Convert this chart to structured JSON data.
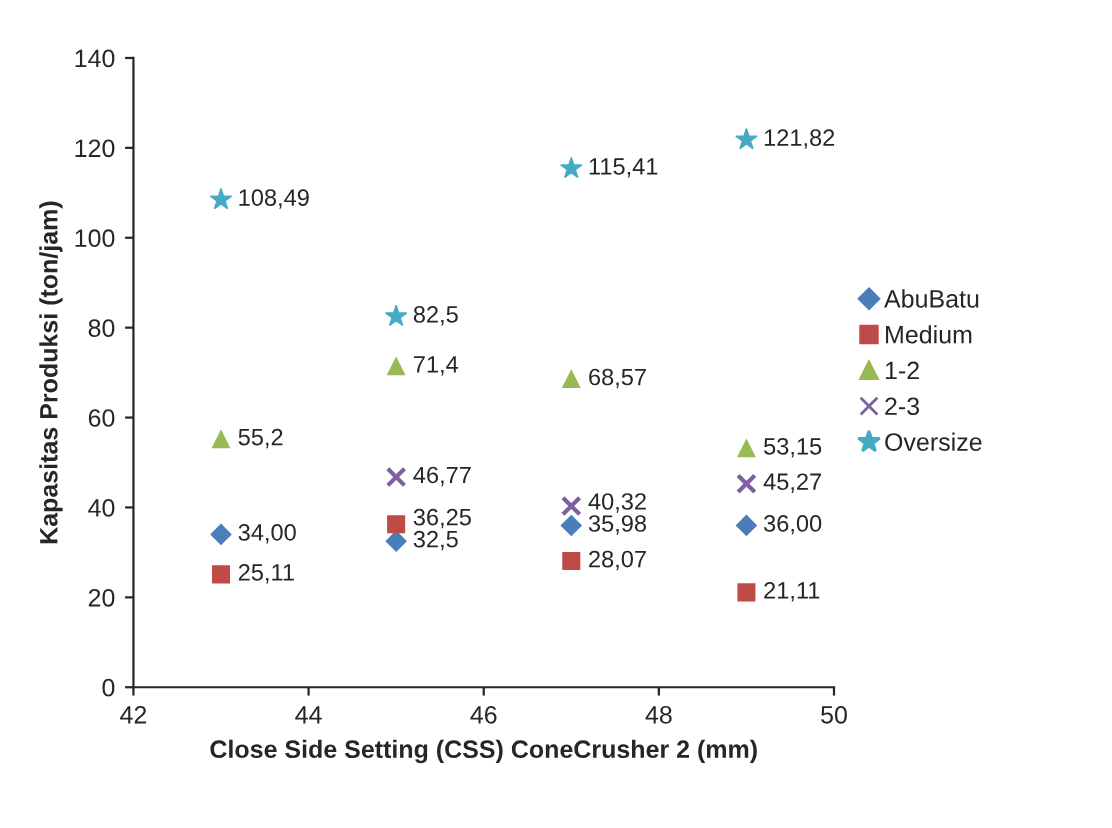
{
  "chart_data": {
    "type": "scatter",
    "xlabel": "Close Side Setting (CSS) ConeCrusher 2 (mm)",
    "ylabel": "Kapasitas Produksi (ton/jam)",
    "x": [
      43,
      45,
      47,
      49
    ],
    "series": [
      {
        "name": "AbuBatu",
        "color": "#4a7ebb",
        "marker": "diamond",
        "values": [
          34.0,
          32.5,
          35.98,
          36.0
        ],
        "value_labels": [
          "34,00",
          "32,5",
          "35,98",
          "36,00"
        ]
      },
      {
        "name": "Medium",
        "color": "#be4b48",
        "marker": "square",
        "values": [
          25.11,
          36.25,
          28.07,
          21.11
        ],
        "value_labels": [
          "25,11",
          "36,25",
          "28,07",
          "21,11"
        ]
      },
      {
        "name": "1-2",
        "color": "#98b954",
        "marker": "triangle",
        "values": [
          55.2,
          71.4,
          68.57,
          53.15
        ],
        "value_labels": [
          "55,2",
          "71,4",
          "68,57",
          "53,15"
        ]
      },
      {
        "name": "2-3",
        "color": "#7d60a0",
        "marker": "cross",
        "values": [
          null,
          46.77,
          40.32,
          45.27
        ],
        "value_labels": [
          null,
          "46,77",
          "40,32",
          "45,27"
        ]
      },
      {
        "name": "Oversize",
        "color": "#46aac5",
        "marker": "star",
        "values": [
          108.49,
          82.5,
          115.41,
          121.82
        ],
        "value_labels": [
          "108,49",
          "82,5",
          "115,41",
          "121,82"
        ]
      }
    ],
    "xlim": [
      42,
      50
    ],
    "xticks": [
      42,
      44,
      46,
      48,
      50
    ],
    "ylim": [
      0,
      140
    ],
    "yticks": [
      0,
      20,
      40,
      60,
      80,
      100,
      120,
      140
    ],
    "grid": false,
    "legend": "right"
  }
}
